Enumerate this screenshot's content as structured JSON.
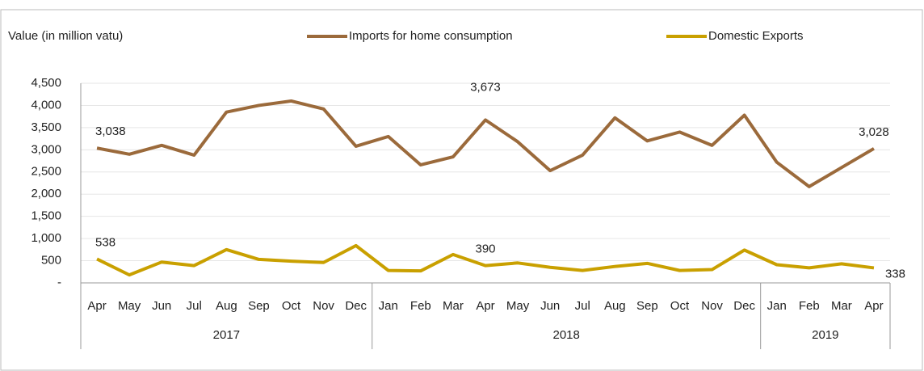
{
  "chart_data": {
    "type": "line",
    "y_axis_label": "Value (in million vatu)",
    "categories": [
      "Apr",
      "May",
      "Jun",
      "Jul",
      "Aug",
      "Sep",
      "Oct",
      "Nov",
      "Dec",
      "Jan",
      "Feb",
      "Mar",
      "Apr",
      "May",
      "Jun",
      "Jul",
      "Aug",
      "Sep",
      "Oct",
      "Nov",
      "Dec",
      "Jan",
      "Feb",
      "Mar",
      "Apr"
    ],
    "year_groups": [
      {
        "label": "2017",
        "start": 0,
        "end": 8
      },
      {
        "label": "2018",
        "start": 9,
        "end": 20
      },
      {
        "label": "2019",
        "start": 21,
        "end": 24
      }
    ],
    "series": [
      {
        "name": "Imports for home consumption",
        "color": "#9b6a3b",
        "values": [
          3038,
          2900,
          3100,
          2880,
          3850,
          4000,
          4100,
          3920,
          3080,
          3300,
          2660,
          2840,
          3673,
          3180,
          2530,
          2880,
          3720,
          3200,
          3400,
          3100,
          3780,
          2720,
          2170,
          2600,
          3028
        ],
        "value_labels": [
          "3,038",
          null,
          null,
          null,
          null,
          null,
          null,
          null,
          null,
          null,
          null,
          null,
          "3,673",
          null,
          null,
          null,
          null,
          null,
          null,
          null,
          null,
          null,
          null,
          null,
          "3,028"
        ]
      },
      {
        "name": "Domestic Exports",
        "color": "#c9a000",
        "values": [
          538,
          180,
          470,
          390,
          750,
          530,
          490,
          460,
          840,
          280,
          270,
          640,
          390,
          450,
          350,
          280,
          370,
          440,
          280,
          300,
          740,
          410,
          340,
          430,
          338
        ],
        "value_labels": [
          "538",
          null,
          null,
          null,
          null,
          null,
          null,
          null,
          null,
          null,
          null,
          null,
          "390",
          null,
          null,
          null,
          null,
          null,
          null,
          null,
          null,
          null,
          null,
          null,
          "338"
        ]
      }
    ],
    "ylim": [
      0,
      4500
    ],
    "yticks": [
      {
        "value": 0,
        "label": "-"
      },
      {
        "value": 500,
        "label": "500"
      },
      {
        "value": 1000,
        "label": "1,000"
      },
      {
        "value": 1500,
        "label": "1,500"
      },
      {
        "value": 2000,
        "label": "2,000"
      },
      {
        "value": 2500,
        "label": "2,500"
      },
      {
        "value": 3000,
        "label": "3,000"
      },
      {
        "value": 3500,
        "label": "3,500"
      },
      {
        "value": 4000,
        "label": "4,000"
      },
      {
        "value": 4500,
        "label": "4,500"
      }
    ],
    "grid": true,
    "legend": "top"
  }
}
